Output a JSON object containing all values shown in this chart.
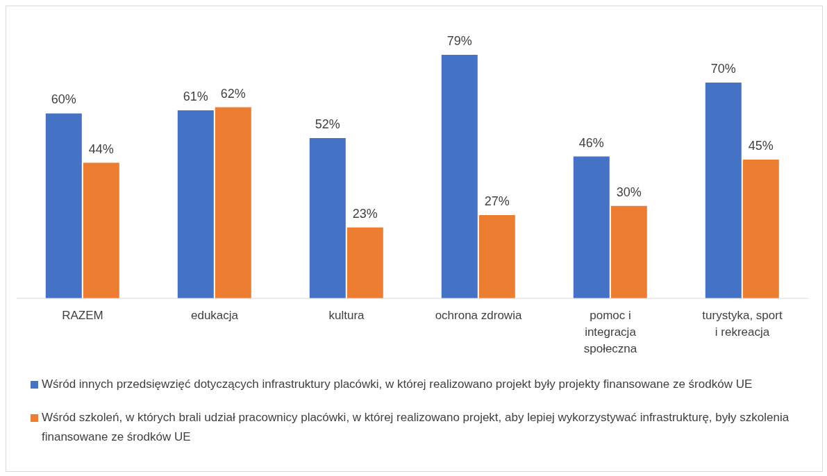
{
  "chart_data": {
    "type": "bar",
    "categories": [
      "RAZEM",
      "edukacja",
      "kultura",
      "ochrona zdrowia",
      "pomoc i integracja społeczna",
      "turystyka, sport i rekreacja"
    ],
    "series": [
      {
        "name": "Wśród innych przedsięwzięć dotyczących infrastruktury placówki, w której realizowano projekt były projekty finansowane ze środków UE",
        "color": "#4472c4",
        "values": [
          60,
          61,
          52,
          79,
          46,
          70
        ],
        "value_labels": [
          "60%",
          "61%",
          "52%",
          "79%",
          "46%",
          "70%"
        ]
      },
      {
        "name": "Wśród szkoleń, w których brali udział pracownicy placówki, w której realizowano projekt, aby lepiej wykorzystywać infrastrukturę, były szkolenia finansowane ze środków UE",
        "color": "#ed7d31",
        "values": [
          44,
          62,
          23,
          27,
          30,
          45
        ],
        "value_labels": [
          "44%",
          "62%",
          "23%",
          "27%",
          "30%",
          "45%"
        ]
      }
    ],
    "grid": false,
    "legend": "bottom"
  }
}
